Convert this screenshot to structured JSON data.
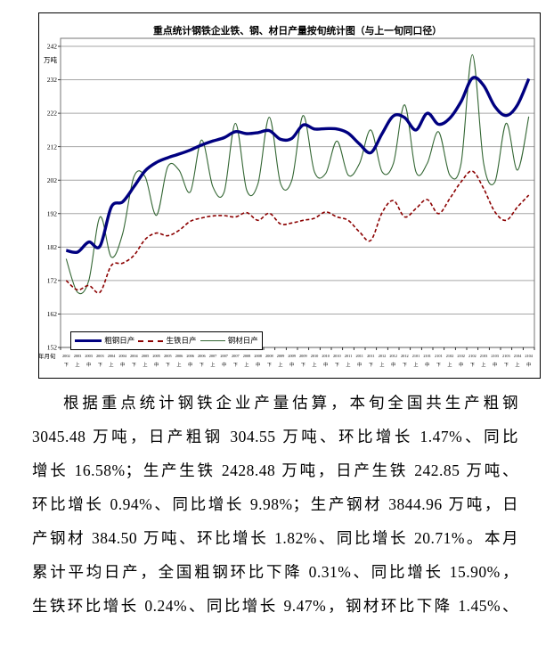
{
  "chart": {
    "title": "重点统计钢铁企业铁、钢、材日产量按旬统计图（与上一旬同口径）",
    "y_axis": {
      "unit": "万吨",
      "ticks": [
        242,
        232,
        222,
        212,
        202,
        192,
        182,
        172,
        162,
        152
      ]
    },
    "x_axis": {
      "unit": "年月旬"
    },
    "legend": [
      {
        "label": "粗钢日产",
        "color": "#000080",
        "style": "solid-thick"
      },
      {
        "label": "生铁日产",
        "color": "#8B0000",
        "style": "dashed"
      },
      {
        "label": "钢材日产",
        "color": "#336633",
        "style": "solid-thin"
      }
    ]
  },
  "chart_data": {
    "type": "line",
    "title": "重点统计钢铁企业铁、钢、材日产量按旬统计图（与上一旬同口径）",
    "ylabel": "万吨",
    "xlabel": "年月旬",
    "ylim": [
      152,
      242
    ],
    "grid": true,
    "legend_position": "bottom-inside",
    "x_codes": [
      "2002",
      "2003",
      "2003",
      "2003",
      "2004",
      "2004",
      "2004",
      "2005",
      "2005",
      "2005",
      "2006",
      "2006",
      "2006",
      "2007",
      "2007",
      "2007",
      "2008",
      "2008",
      "2008",
      "2009",
      "2009",
      "2009",
      "2010",
      "2010",
      "2010",
      "2011",
      "2011",
      "2011",
      "2012",
      "2012",
      "2012",
      "2101",
      "2101",
      "2101",
      "2102",
      "2102",
      "2102",
      "2103",
      "2103",
      "2103",
      "2104",
      "2104"
    ],
    "x_periods": [
      "下",
      "上",
      "中",
      "下",
      "上",
      "中",
      "下",
      "上",
      "中",
      "下",
      "上",
      "中",
      "下",
      "上",
      "中",
      "下",
      "上",
      "中",
      "下",
      "上",
      "中",
      "下",
      "上",
      "中",
      "下",
      "上",
      "中",
      "下",
      "上",
      "中",
      "下",
      "上",
      "中",
      "下",
      "上",
      "中",
      "下",
      "上",
      "中",
      "下",
      "上",
      "中"
    ],
    "series": [
      {
        "name": "粗钢日产",
        "color": "#000080",
        "width": 3.4,
        "dash": null,
        "values": [
          181,
          180.5,
          183.5,
          182.3,
          194,
          195.5,
          200,
          204.8,
          207.3,
          208.7,
          209.8,
          211,
          212.5,
          213.7,
          214.7,
          216.5,
          215.9,
          216.2,
          216.8,
          214.2,
          214.5,
          218.5,
          217.3,
          217.4,
          217.3,
          216,
          212.8,
          210.2,
          215.9,
          221.2,
          220.7,
          217,
          222,
          218.7,
          220.5,
          225.5,
          232.5,
          230.3,
          224,
          221.3,
          224.5,
          232.3
        ]
      },
      {
        "name": "生铁日产",
        "color": "#8B0000",
        "width": 1.6,
        "dash": "4 2.5",
        "values": [
          172,
          169.2,
          170.5,
          168.5,
          176.5,
          177.2,
          179.5,
          184.3,
          186.2,
          185.4,
          187,
          189.7,
          190.7,
          191.3,
          191.4,
          191,
          192.3,
          190,
          192.1,
          188.9,
          189.2,
          190,
          190.6,
          192.5,
          191,
          190,
          186.5,
          184,
          192.3,
          195.9,
          191,
          193.5,
          196.2,
          192,
          196.5,
          201.5,
          204.7,
          199.5,
          192.5,
          190,
          194,
          197.5
        ]
      },
      {
        "name": "钢材日产",
        "color": "#336633",
        "width": 1.1,
        "dash": null,
        "values": [
          178.5,
          168.5,
          172,
          191,
          179,
          186,
          203,
          203,
          191.5,
          206,
          205,
          198.5,
          214,
          200,
          198.5,
          219,
          199,
          201,
          220.8,
          201,
          202,
          221.3,
          204.5,
          204,
          213.7,
          203.5,
          207,
          217,
          204.5,
          207,
          224.5,
          204.5,
          207,
          216.5,
          203.5,
          207,
          239.5,
          207,
          201.5,
          219,
          205,
          221
        ]
      }
    ]
  },
  "paragraph": {
    "lines": [
      "根据重点统计钢铁企业产量估算，本旬全国共生产粗钢",
      "3045.48 万吨，日产粗钢 304.55 万吨、环比增长 1.47%、同比",
      "增长 16.58%；生产生铁 2428.48 万吨，日产生铁 242.85 万吨、",
      "环比增长 0.94%、同比增长 9.98%；生产钢材 3844.96 万吨，日",
      "产钢材 384.50 万吨、环比增长 1.82%、同比增长 20.71%。本月",
      "累计平均日产，全国粗钢环比下降 0.31%、同比增长 15.90%，",
      "生铁环比增长 0.24%、同比增长 9.47%，钢材环比下降 1.45%、"
    ]
  }
}
